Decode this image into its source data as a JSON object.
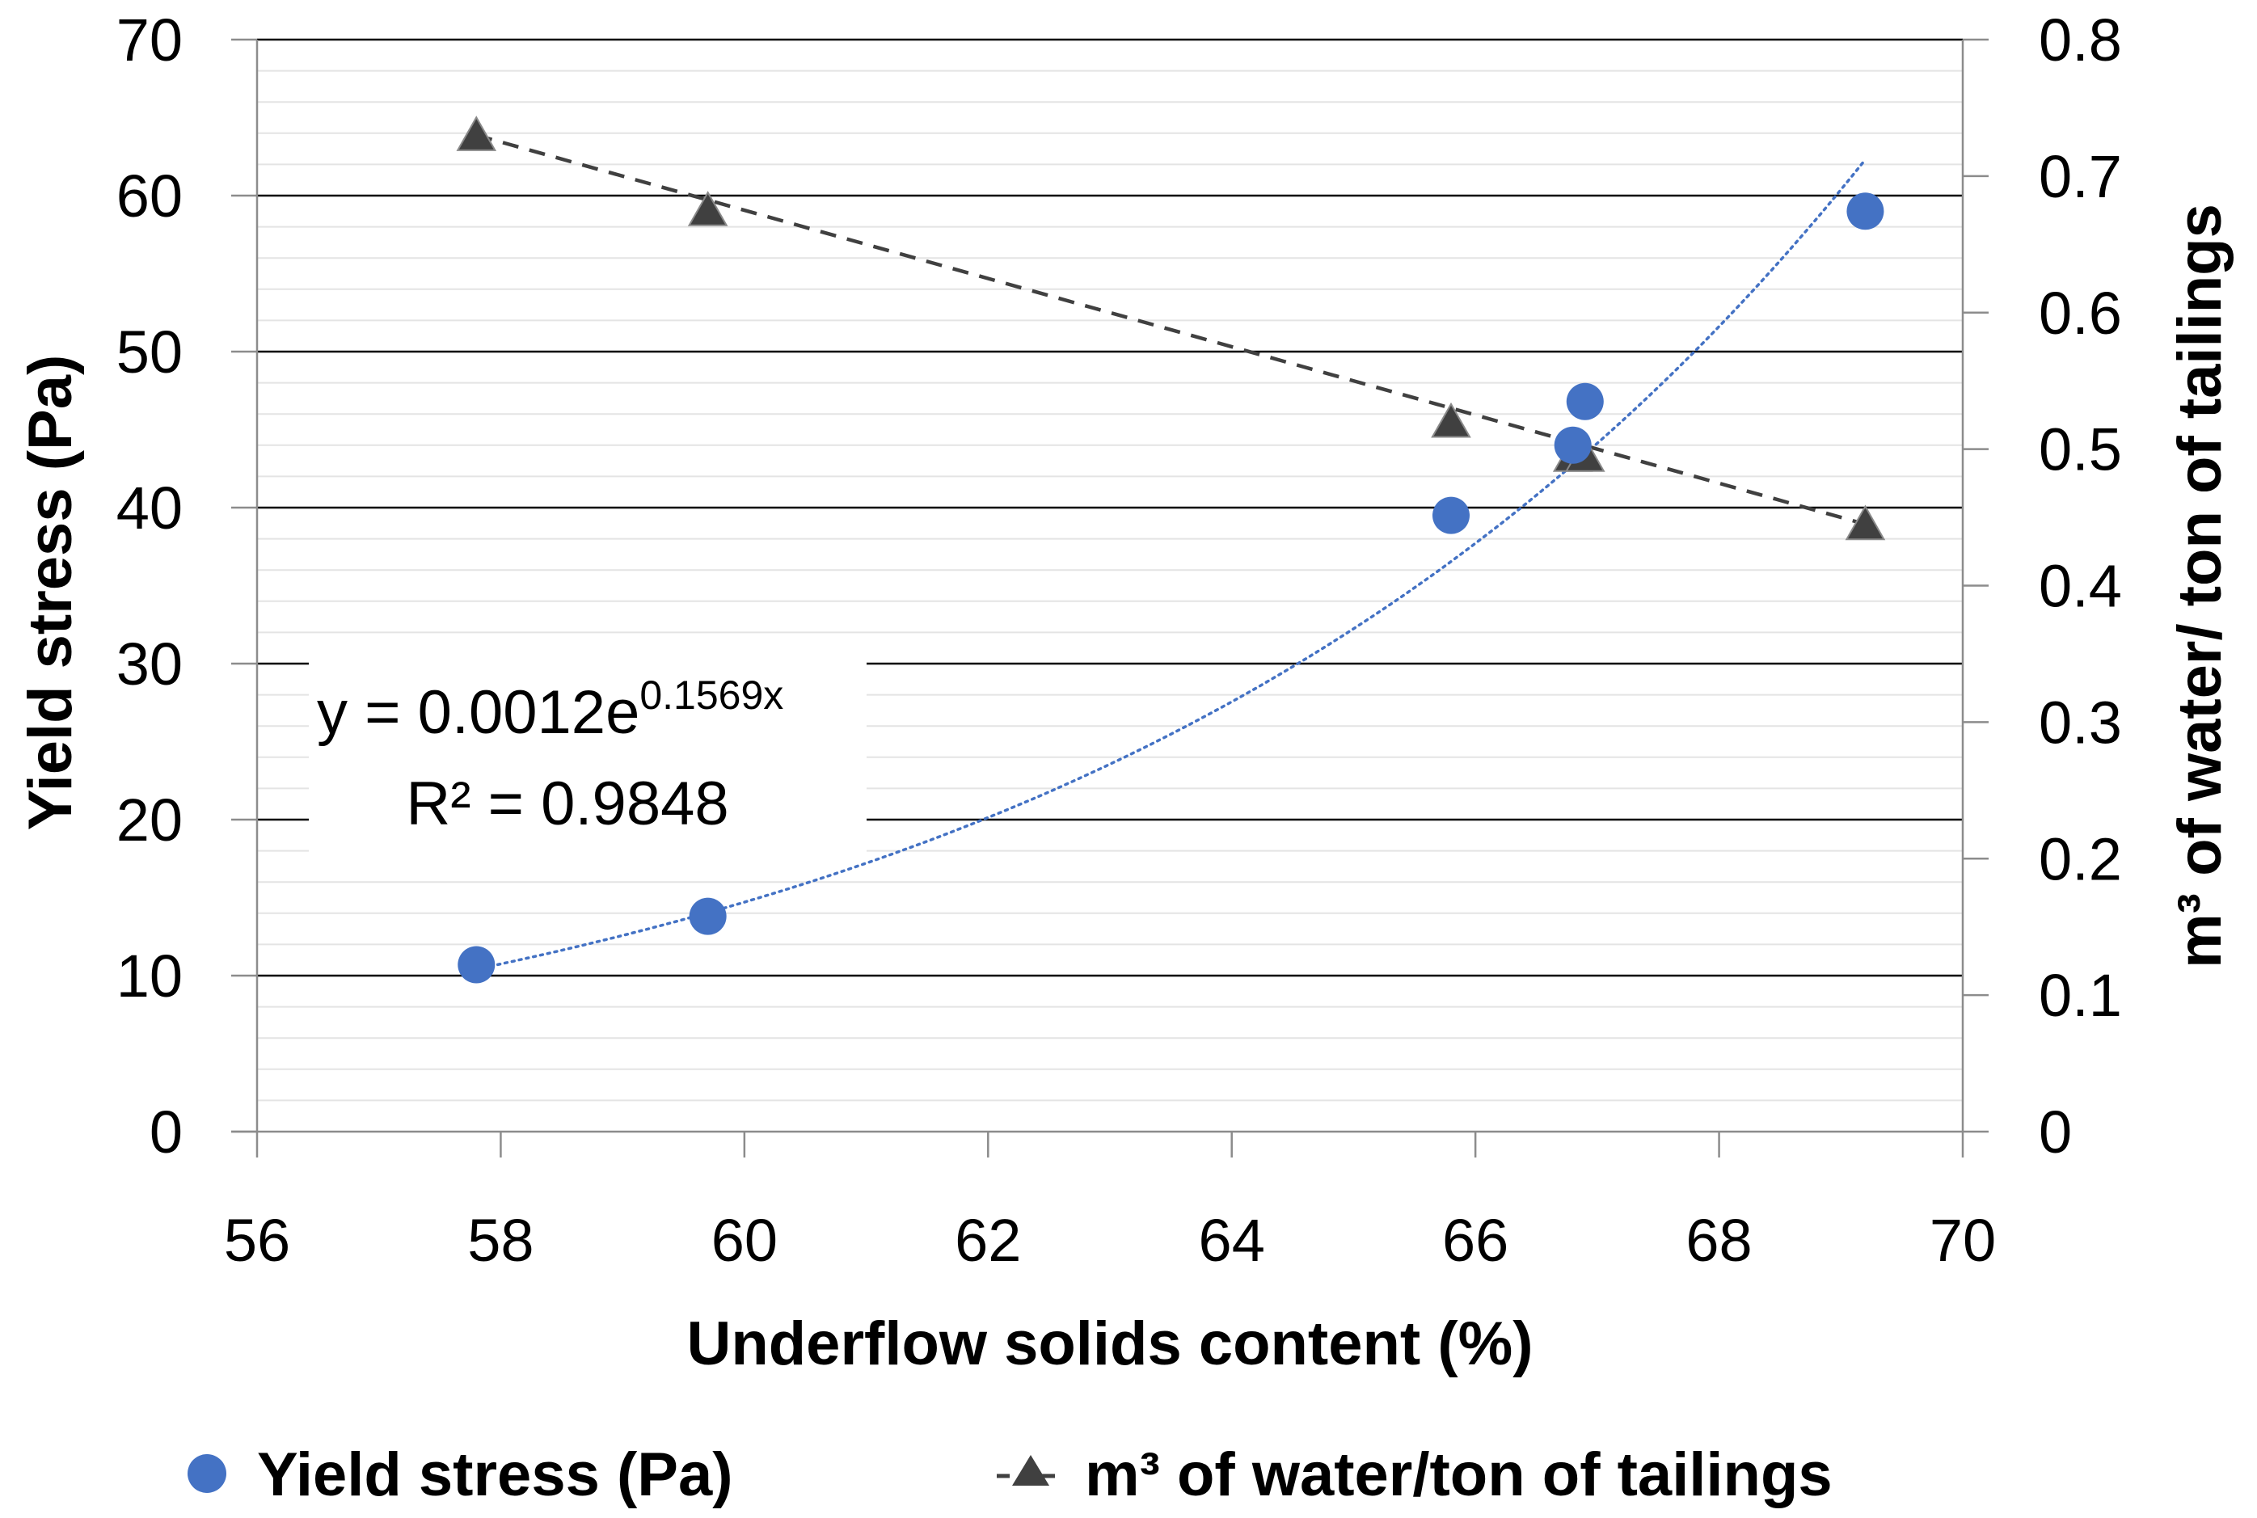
{
  "chart_data": {
    "type": "scatter",
    "title": "",
    "xlabel": "Underflow solids content (%)",
    "ylabel": "Yield stress (Pa)",
    "y2label": "m³ of water/ ton of tailings",
    "xlim": [
      56,
      70
    ],
    "ylim": [
      0,
      70
    ],
    "y2lim": [
      0,
      0.8
    ],
    "xticks": [
      "56",
      "58",
      "60",
      "62",
      "64",
      "66",
      "68",
      "70"
    ],
    "yticks": [
      "0",
      "10",
      "20",
      "30",
      "40",
      "50",
      "60",
      "70"
    ],
    "y2ticks": [
      "0",
      "0.1",
      "0.2",
      "0.3",
      "0.4",
      "0.5",
      "0.6",
      "0.7",
      "0.8"
    ],
    "grid": true,
    "series": [
      {
        "name": "Yield stress (Pa)",
        "axis": "left",
        "marker": "circle",
        "color": "#4472C4",
        "x": [
          57.8,
          59.7,
          65.8,
          66.8,
          66.9,
          69.2
        ],
        "y": [
          10.7,
          13.8,
          39.5,
          44.0,
          46.8,
          59.0
        ]
      },
      {
        "name": "m³ of water/ton of tailings",
        "axis": "right",
        "marker": "triangle",
        "line": "dashed",
        "color": "#404040",
        "x": [
          57.8,
          59.7,
          65.8,
          66.8,
          66.9,
          69.2
        ],
        "y": [
          0.73,
          0.675,
          0.52,
          0.495,
          0.495,
          0.445
        ]
      }
    ],
    "trendline": {
      "series": "Yield stress (Pa)",
      "type": "exponential",
      "a": 0.0012,
      "b": 0.1569,
      "x_range": [
        57.8,
        69.2
      ],
      "color": "#4472C4",
      "equation_prefix": "y = 0.0012e",
      "equation_exponent": "0.1569x",
      "r_squared": "R² = 0.9848"
    },
    "legend": {
      "placement": "bottom",
      "items": [
        {
          "label": "Yield stress (Pa)",
          "marker": "circle",
          "color": "#4472C4"
        },
        {
          "label": "m³ of water/ton of tailings",
          "marker": "triangle-dashed",
          "color": "#404040"
        }
      ]
    }
  }
}
